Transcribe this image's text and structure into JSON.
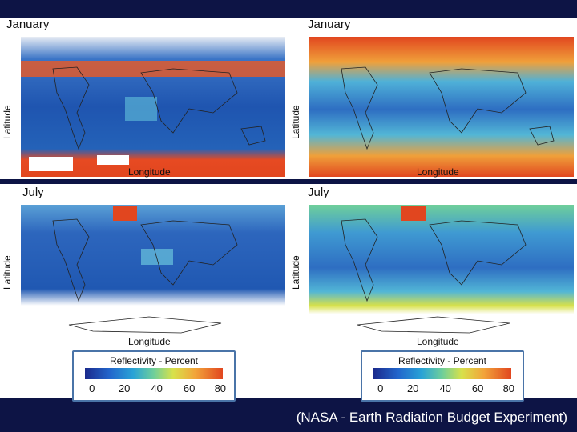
{
  "panels": [
    {
      "title": "January",
      "ylabel": "Latitude",
      "xlabel": "Longitude"
    },
    {
      "title": "January",
      "ylabel": "Latitude",
      "xlabel": "Longitude"
    },
    {
      "title": "July",
      "ylabel": "Latitude",
      "xlabel": "Longitude"
    },
    {
      "title": "July",
      "ylabel": "Latitude",
      "xlabel": "Longitude"
    }
  ],
  "colorbar": {
    "title": "Reflectivity - Percent",
    "ticks": [
      "0",
      "20",
      "40",
      "60",
      "80"
    ]
  },
  "credit": "(NASA - Earth Radiation Budget Experiment)",
  "colors": {
    "band": "#0d1445",
    "ocean_low": "#1f4fa8",
    "polar_high": "#e1461f",
    "cloud_mid": "#58b6d6"
  }
}
